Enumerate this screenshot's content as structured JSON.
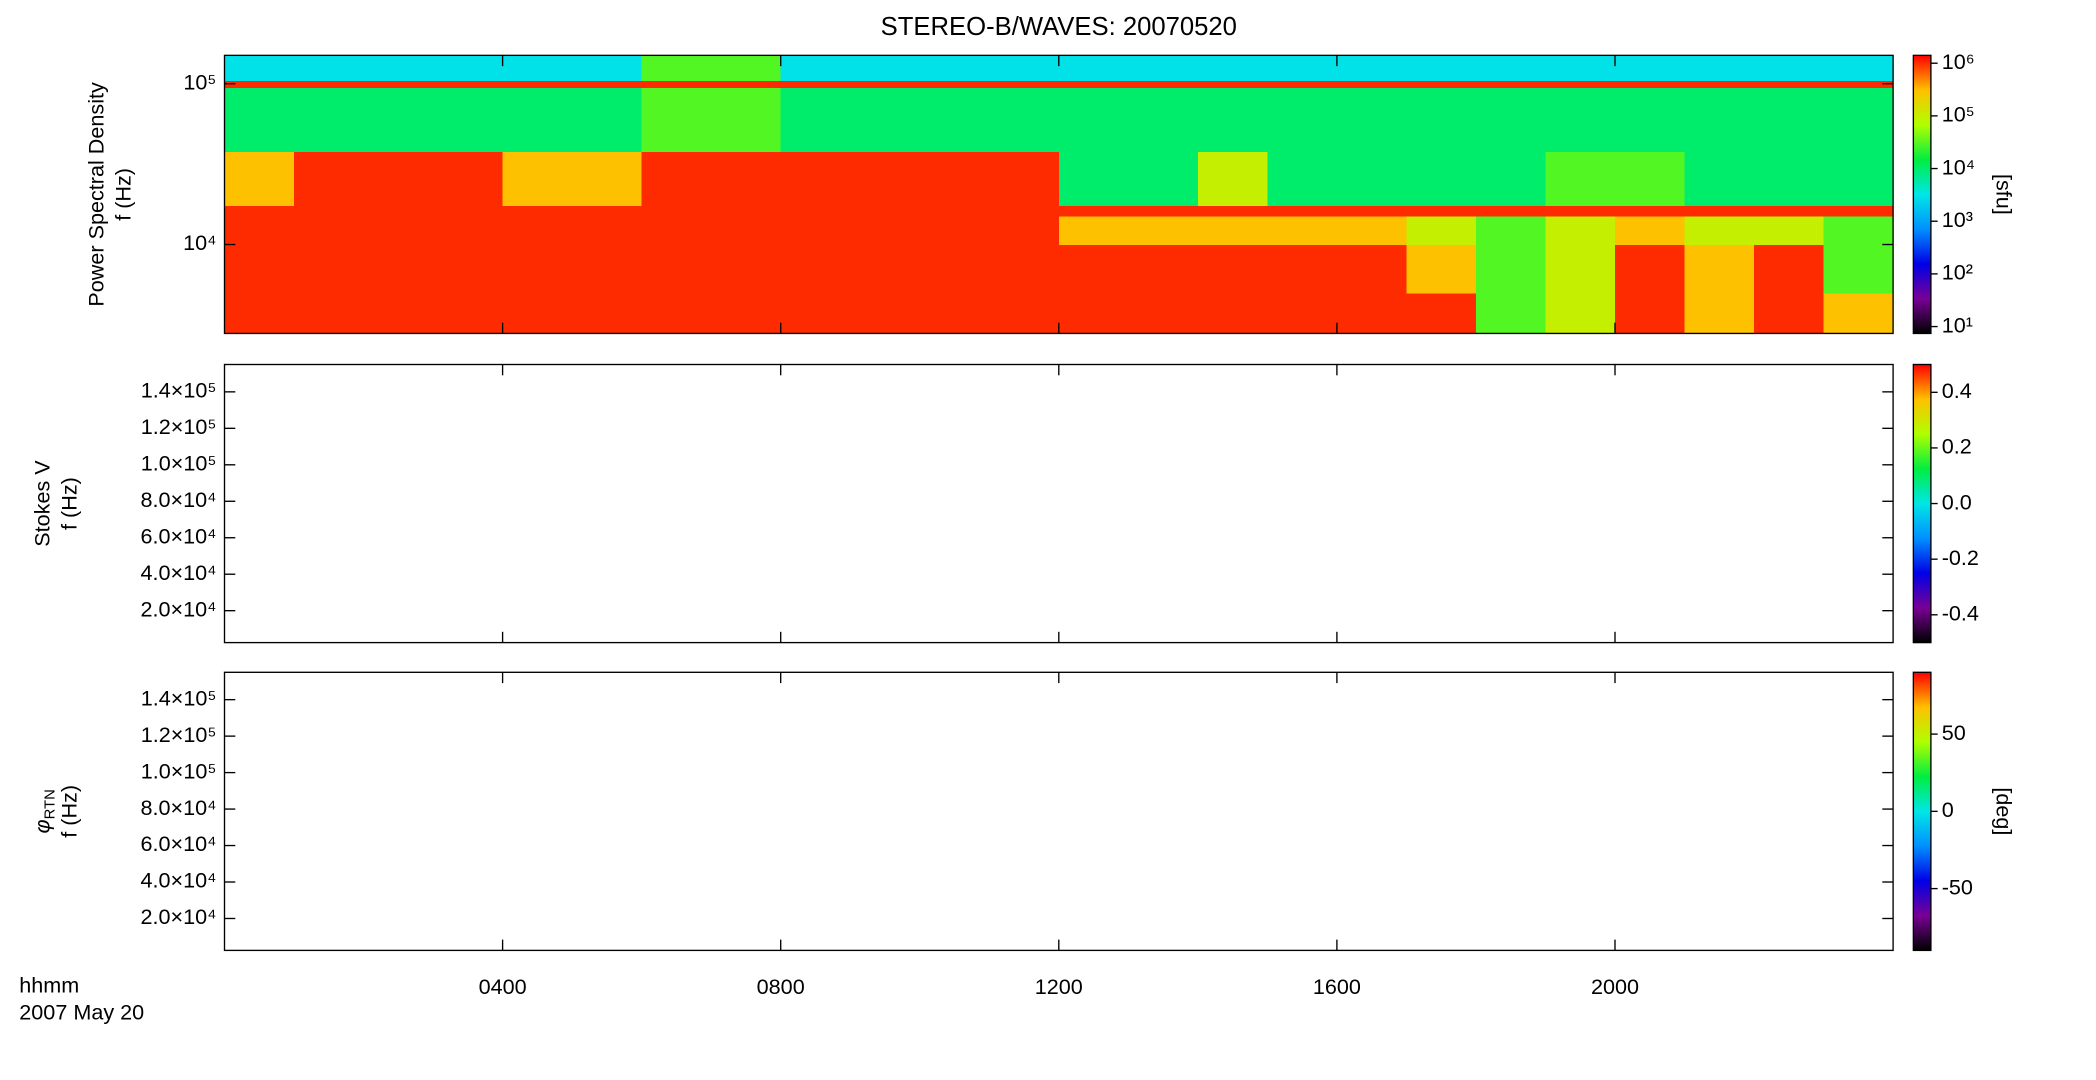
{
  "title": "STEREO-B/WAVES: 20070520",
  "time_unit_label": "hhmm",
  "date_label": "2007 May 20",
  "colormap": [
    "#000000",
    "#780096",
    "#0000e6",
    "#0090ff",
    "#00e6e6",
    "#00ee40",
    "#b0ff00",
    "#ffc000",
    "#ff0000"
  ],
  "chart_data": [
    {
      "type": "heatmap",
      "ylabel": "Power Spectral Density",
      "ylabel2": "f (Hz)",
      "xlim": [
        0,
        24
      ],
      "xticks": [
        4,
        8,
        12,
        16,
        20
      ],
      "ylim": [
        2800,
        150000
      ],
      "yscale": "log",
      "yticks": [
        {
          "value": 10000,
          "label": "10⁴"
        },
        {
          "value": 100000,
          "label": "10⁵"
        }
      ],
      "x_bins": [
        0,
        1,
        2,
        3,
        4,
        5,
        6,
        7,
        8,
        9,
        10,
        11,
        12,
        13,
        14,
        15,
        16,
        17,
        18,
        19,
        20,
        21,
        22,
        23,
        24
      ],
      "y_bins": [
        2800,
        5000,
        10000,
        15000,
        17500,
        38000,
        95000,
        105000,
        150000
      ],
      "values": [
        [
          1000000,
          1000000,
          1000000,
          1000000,
          1000000,
          1000000,
          1000000,
          1000000,
          1000000,
          1000000,
          1000000,
          1000000,
          1000000,
          1000000,
          1000000,
          1000000,
          1000000,
          1000000,
          30000,
          100000,
          1000000,
          300000,
          1000000,
          300000
        ],
        [
          1000000,
          1000000,
          1000000,
          1000000,
          1000000,
          1000000,
          1000000,
          1000000,
          1000000,
          1000000,
          1000000,
          1000000,
          1000000,
          1000000,
          1000000,
          1000000,
          1000000,
          300000,
          30000,
          100000,
          1000000,
          300000,
          1000000,
          30000
        ],
        [
          1000000,
          1000000,
          1000000,
          1000000,
          1000000,
          1000000,
          1000000,
          1000000,
          1000000,
          1000000,
          1000000,
          1000000,
          300000,
          300000,
          300000,
          300000,
          300000,
          100000,
          30000,
          100000,
          300000,
          100000,
          100000,
          30000
        ],
        [
          1000000,
          1000000,
          1000000,
          1000000,
          1000000,
          1000000,
          1000000,
          1000000,
          1000000,
          1000000,
          1000000,
          1000000,
          1000000,
          1000000,
          1000000,
          1000000,
          1000000,
          1000000,
          1000000,
          1000000,
          1000000,
          1000000,
          1000000,
          1000000
        ],
        [
          300000,
          1000000,
          1000000,
          1000000,
          300000,
          300000,
          1000000,
          1000000,
          1000000,
          1000000,
          1000000,
          1000000,
          10000,
          10000,
          100000,
          10000,
          10000,
          10000,
          10000,
          30000,
          30000,
          10000,
          10000,
          10000
        ],
        [
          10000,
          10000,
          10000,
          10000,
          10000,
          10000,
          30000,
          30000,
          10000,
          10000,
          10000,
          10000,
          10000,
          10000,
          10000,
          10000,
          10000,
          10000,
          10000,
          10000,
          10000,
          10000,
          10000,
          10000
        ],
        [
          1000000,
          1000000,
          1000000,
          1000000,
          1000000,
          1000000,
          1000000,
          1000000,
          1000000,
          1000000,
          1000000,
          1000000,
          1000000,
          1000000,
          1000000,
          1000000,
          1000000,
          1000000,
          1000000,
          1000000,
          1000000,
          1000000,
          1000000,
          1000000
        ],
        [
          3000,
          3000,
          3000,
          3000,
          3000,
          3000,
          30000,
          30000,
          3000,
          3000,
          3000,
          3000,
          3000,
          3000,
          3000,
          3000,
          3000,
          3000,
          3000,
          3000,
          3000,
          3000,
          3000,
          3000
        ]
      ],
      "clim": [
        7.4,
        1410000
      ],
      "cscale": "log",
      "cticks": [
        {
          "value": 10,
          "label": "10¹"
        },
        {
          "value": 100,
          "label": "10²"
        },
        {
          "value": 1000,
          "label": "10³"
        },
        {
          "value": 10000,
          "label": "10⁴"
        },
        {
          "value": 100000,
          "label": "10⁵"
        },
        {
          "value": 1000000,
          "label": "10⁶"
        }
      ],
      "clabel": "[sfu]"
    },
    {
      "type": "heatmap",
      "ylabel": "Stokes V",
      "ylabel2": "f (Hz)",
      "xlim": [
        0,
        24
      ],
      "xticks": [
        4,
        8,
        12,
        16,
        20
      ],
      "ylim": [
        2500,
        155000
      ],
      "yticks": [
        {
          "value": 20000,
          "label": "2.0×10⁴"
        },
        {
          "value": 40000,
          "label": "4.0×10⁴"
        },
        {
          "value": 60000,
          "label": "6.0×10⁴"
        },
        {
          "value": 80000,
          "label": "8.0×10⁴"
        },
        {
          "value": 100000,
          "label": "1.0×10⁵"
        },
        {
          "value": 120000,
          "label": "1.2×10⁵"
        },
        {
          "value": 140000,
          "label": "1.4×10⁵"
        }
      ],
      "clim": [
        -0.5,
        0.5
      ],
      "cticks": [
        -0.4,
        -0.2,
        {
          "value": 0,
          "label": "0.0"
        },
        0.2,
        0.4
      ]
    },
    {
      "type": "heatmap",
      "ylabel": "φ",
      "ylabel_sub": "RTN",
      "ylabel2": "f (Hz)",
      "xlim": [
        0,
        24
      ],
      "xticks": [
        {
          "value": 4,
          "label": "0400"
        },
        {
          "value": 8,
          "label": "0800"
        },
        {
          "value": 12,
          "label": "1200"
        },
        {
          "value": 16,
          "label": "1600"
        },
        {
          "value": 20,
          "label": "2000"
        }
      ],
      "ylim": [
        2500,
        155000
      ],
      "yticks": [
        {
          "value": 20000,
          "label": "2.0×10⁴"
        },
        {
          "value": 40000,
          "label": "4.0×10⁴"
        },
        {
          "value": 60000,
          "label": "6.0×10⁴"
        },
        {
          "value": 80000,
          "label": "8.0×10⁴"
        },
        {
          "value": 100000,
          "label": "1.0×10⁵"
        },
        {
          "value": 120000,
          "label": "1.2×10⁵"
        },
        {
          "value": 140000,
          "label": "1.4×10⁵"
        }
      ],
      "clim": [
        -90,
        90
      ],
      "cticks": [
        -50,
        0,
        50
      ],
      "clabel": "[deg]"
    }
  ]
}
